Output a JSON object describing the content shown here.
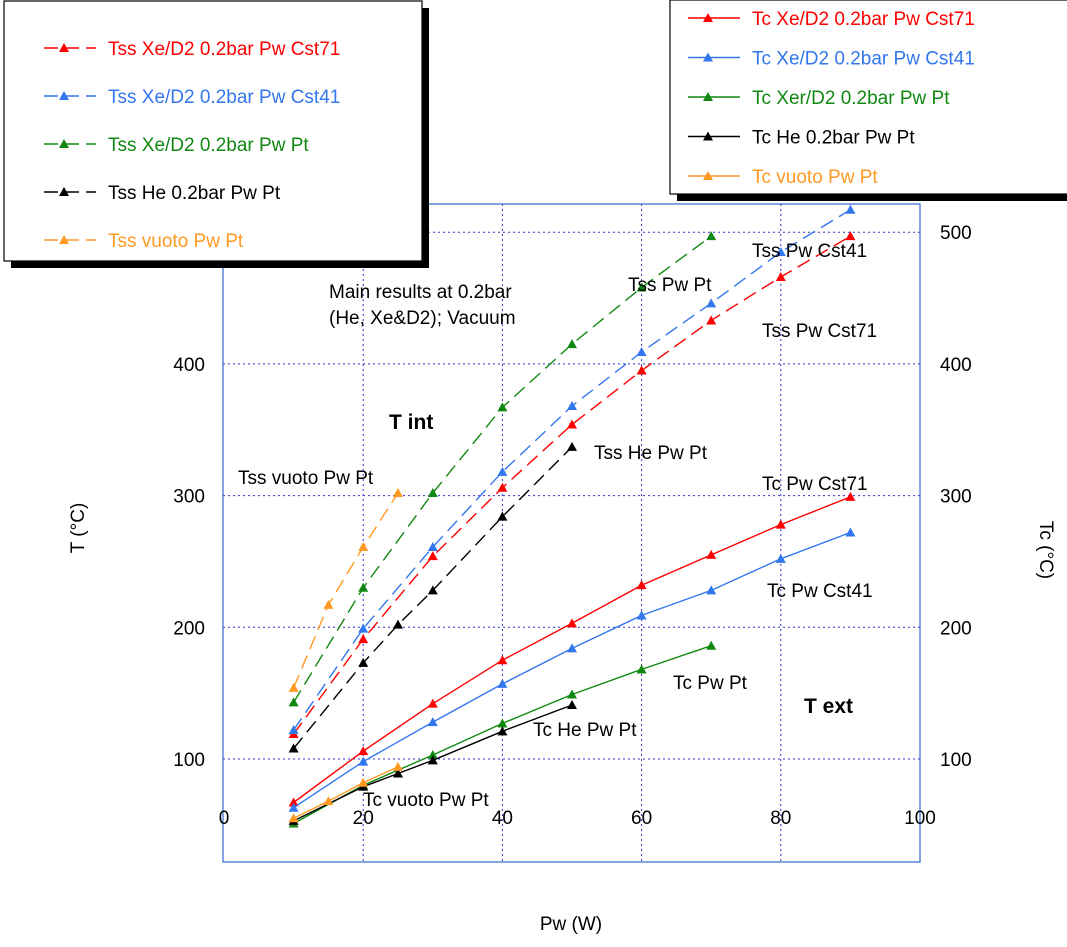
{
  "chart_data": {
    "type": "line",
    "xlabel": "Pw (W)",
    "ylabel": "T (°C)",
    "y2label": "Tc (°C)",
    "xlim": [
      0,
      100
    ],
    "ylim": [
      20,
      520
    ],
    "x_ticks": [
      0,
      20,
      40,
      60,
      80,
      100
    ],
    "y_ticks": [
      100,
      200,
      300,
      400,
      500
    ],
    "y_tick_labels_left": [
      "100",
      "200",
      "300",
      "400",
      ""
    ],
    "y_tick_labels_right": [
      "100",
      "200",
      "300",
      "400",
      "500"
    ],
    "grid": true,
    "colors": {
      "red": "#ff0000",
      "blue": "#3377ee",
      "green": "#118811",
      "black": "#000000",
      "orange": "#ff9922",
      "grid": "#3333cc",
      "frame": "#3366cc"
    },
    "series": [
      {
        "name": "Tss Xe/D2 0.2bar Pw Cst71",
        "color": "red",
        "style": "dashed",
        "x": [
          10,
          20,
          30,
          40,
          50,
          60,
          70,
          80,
          90
        ],
        "y": [
          119,
          191,
          254,
          306,
          354,
          395,
          433,
          466,
          497
        ]
      },
      {
        "name": "Tss Xe/D2 0.2bar Pw Cst41",
        "color": "blue",
        "style": "dashed",
        "x": [
          10,
          20,
          30,
          40,
          50,
          60,
          70,
          80,
          90
        ],
        "y": [
          122,
          199,
          261,
          318,
          368,
          409,
          446,
          485,
          517
        ]
      },
      {
        "name": "Tss Xe/D2 0.2bar Pw Pt",
        "color": "green",
        "style": "dashed",
        "x": [
          10,
          20,
          30,
          40,
          50,
          60,
          70
        ],
        "y": [
          143,
          230,
          302,
          367,
          415,
          458,
          497
        ]
      },
      {
        "name": "Tss He 0.2bar Pw Pt",
        "color": "black",
        "style": "dashed",
        "x": [
          10,
          20,
          25,
          30,
          40,
          50
        ],
        "y": [
          108,
          173,
          202,
          228,
          284,
          337
        ]
      },
      {
        "name": "Tss vuoto Pw Pt",
        "color": "orange",
        "style": "dashed",
        "x": [
          10,
          15,
          20,
          25
        ],
        "y": [
          154,
          217,
          261,
          302
        ]
      },
      {
        "name": "Tc Xe/D2 0.2bar Pw Cst71",
        "color": "red",
        "style": "solid",
        "x": [
          10,
          20,
          30,
          40,
          50,
          60,
          70,
          80,
          90
        ],
        "y": [
          67,
          106,
          142,
          175,
          203,
          232,
          255,
          278,
          299
        ]
      },
      {
        "name": "Tc Xe/D2 0.2bar Pw Cst41",
        "color": "blue",
        "style": "solid",
        "x": [
          10,
          20,
          30,
          40,
          50,
          60,
          70,
          80,
          90
        ],
        "y": [
          63,
          98,
          128,
          157,
          184,
          209,
          228,
          252,
          272
        ]
      },
      {
        "name": "Tc Xer/D2 0.2bar Pw Pt",
        "color": "green",
        "style": "solid",
        "x": [
          10,
          20,
          30,
          40,
          50,
          60,
          70
        ],
        "y": [
          51,
          80,
          103,
          127,
          149,
          168,
          186
        ]
      },
      {
        "name": "Tc He 0.2bar Pw Pt",
        "color": "black",
        "style": "solid",
        "x": [
          10,
          20,
          25,
          30,
          40,
          50
        ],
        "y": [
          53,
          79,
          89,
          99,
          121,
          141
        ]
      },
      {
        "name": "Tc vuoto Pw Pt",
        "color": "orange",
        "style": "solid",
        "x": [
          10,
          15,
          20,
          25
        ],
        "y": [
          55,
          68,
          82,
          94
        ]
      }
    ],
    "legend_left": [
      {
        "label": "Tss Xe/D2 0.2bar Pw Cst71",
        "color": "red"
      },
      {
        "label": "Tss Xe/D2 0.2bar Pw Cst41",
        "color": "blue"
      },
      {
        "label": "Tss Xe/D2 0.2bar Pw Pt",
        "color": "green"
      },
      {
        "label": "Tss He 0.2bar Pw Pt",
        "color": "black"
      },
      {
        "label": "Tss vuoto Pw Pt",
        "color": "orange"
      }
    ],
    "legend_right": [
      {
        "label": "Tc Xe/D2 0.2bar Pw Cst71",
        "color": "red"
      },
      {
        "label": "Tc Xe/D2 0.2bar Pw Cst41",
        "color": "blue"
      },
      {
        "label": "Tc Xer/D2 0.2bar Pw Pt",
        "color": "green"
      },
      {
        "label": "Tc He 0.2bar Pw Pt",
        "color": "black"
      },
      {
        "label": "Tc vuoto Pw Pt",
        "color": "orange"
      }
    ],
    "annotations": {
      "main_results_line1": "Main results at 0.2bar",
      "main_results_line2": "(He, Xe&D2); Vacuum",
      "t_int": "T int",
      "t_ext": "T ext",
      "tss_pw_cst41": "Tss Pw Cst41",
      "tss_pw_pt": "Tss Pw Pt",
      "tss_pw_cst71": "Tss Pw Cst71",
      "tss_he_pw_pt": "Tss He Pw Pt",
      "tss_vuoto_pw_pt": "Tss vuoto Pw Pt",
      "tc_pw_cst71": "Tc Pw Cst71",
      "tc_pw_cst41": "Tc Pw Cst41",
      "tc_pw_pt": "Tc Pw Pt",
      "tc_he_pw_pt": "Tc He Pw Pt",
      "tc_vuoto_pw_pt": "Tc vuoto Pw Pt"
    }
  }
}
